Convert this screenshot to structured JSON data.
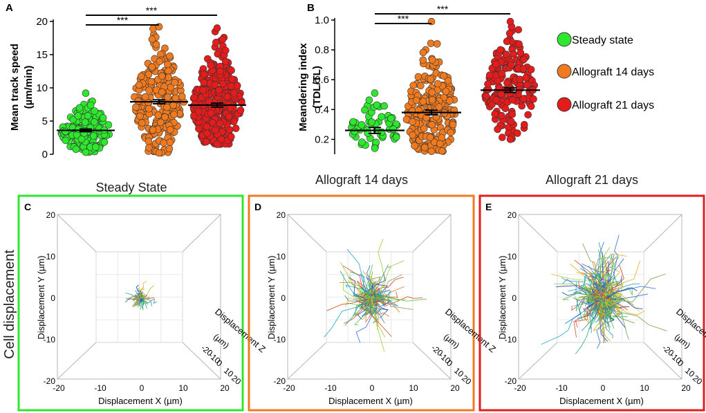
{
  "legend": [
    {
      "label": "Steady state",
      "color": "#2ee82e"
    },
    {
      "label": "Allograft 14 days",
      "color": "#f07a20"
    },
    {
      "label": "Allograft 21 days",
      "color": "#e61c1c"
    }
  ],
  "side_label": "Cell displacement",
  "colors": {
    "green": "#2ee82e",
    "orange": "#f07a20",
    "red": "#e61c1c"
  },
  "chart_data": [
    {
      "panel": "A",
      "type": "scatter",
      "ylabel_line1": "Mean track speed",
      "ylabel_line2": "(µm/min)",
      "ylim": [
        0,
        20
      ],
      "yticks": [
        0,
        5,
        10,
        15,
        20
      ],
      "series": [
        {
          "name": "Steady state",
          "mean": 3.6,
          "sem": 0.2,
          "min": 0.3,
          "max": 9.2,
          "n": 150
        },
        {
          "name": "Allograft 14 days",
          "mean": 7.9,
          "sem": 0.3,
          "min": 0.2,
          "max": 19.2,
          "n": 230
        },
        {
          "name": "Allograft 21 days",
          "mean": 7.4,
          "sem": 0.3,
          "min": 1.5,
          "max": 19.0,
          "n": 330
        }
      ],
      "significance": [
        {
          "from": 0,
          "to": 1,
          "label": "***"
        },
        {
          "from": 0,
          "to": 2,
          "label": "***"
        }
      ]
    },
    {
      "panel": "B",
      "type": "scatter",
      "ylabel_line1": "Meandering index",
      "ylabel_line2": "(TDL/TL)",
      "ylim": [
        0.1,
        1.0
      ],
      "yticks": [
        0.2,
        0.4,
        0.6,
        0.8,
        1.0
      ],
      "yticklabels": [
        "0.2",
        "0.4",
        "0.6",
        "0.8",
        "1.0"
      ],
      "series": [
        {
          "name": "Steady state",
          "mean": 0.26,
          "sem": 0.02,
          "min": 0.14,
          "max": 0.51,
          "n": 55
        },
        {
          "name": "Allograft 14 days",
          "mean": 0.38,
          "sem": 0.015,
          "min": 0.12,
          "max": 0.99,
          "n": 230
        },
        {
          "name": "Allograft 21 days",
          "mean": 0.53,
          "sem": 0.015,
          "min": 0.2,
          "max": 0.99,
          "n": 175
        }
      ],
      "significance": [
        {
          "from": 0,
          "to": 1,
          "label": "***"
        },
        {
          "from": 0,
          "to": 2,
          "label": "***"
        }
      ]
    },
    {
      "panel": "C",
      "type": "line",
      "title": "Steady State",
      "xlabel": "Displacement X (µm)",
      "ylabel": "Displacement Y (µm)",
      "zlabel": "Displacement Z",
      "zunit": "(µm)",
      "xlim": [
        -20,
        20
      ],
      "ylim": [
        -20,
        20
      ],
      "zlim": [
        -20,
        20
      ],
      "ticks": [
        -20,
        -10,
        0,
        10,
        20
      ],
      "track_count": 70,
      "spread": 2.5,
      "frame_color": "#2ee82e"
    },
    {
      "panel": "D",
      "type": "line",
      "title": "Allograft 14 days",
      "xlabel": "Displacement X (µm)",
      "ylabel": "Displacement Y (µm)",
      "zlabel": "Displacement Z",
      "zunit": "(µm)",
      "xlim": [
        -20,
        20
      ],
      "ylim": [
        -20,
        20
      ],
      "zlim": [
        -20,
        20
      ],
      "ticks": [
        -20,
        -10,
        0,
        10,
        20
      ],
      "track_count": 170,
      "spread": 7,
      "frame_color": "#f07a20"
    },
    {
      "panel": "E",
      "type": "line",
      "title": "Allograft 21 days",
      "xlabel": "Displacement X (µm)",
      "ylabel": "Displacement Y (µm)",
      "zlabel": "Displacement Z",
      "zunit": "(µm)",
      "xlim": [
        -20,
        20
      ],
      "ylim": [
        -20,
        20
      ],
      "zlim": [
        -20,
        20
      ],
      "ticks": [
        -20,
        -10,
        0,
        10,
        20
      ],
      "track_count": 300,
      "spread": 8.5,
      "frame_color": "#e61c1c"
    }
  ]
}
